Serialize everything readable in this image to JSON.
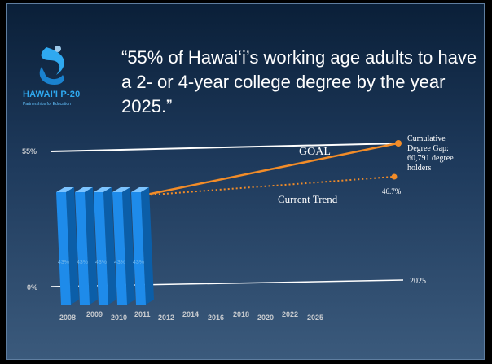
{
  "slide": {
    "quote": "“55% of Hawai‘i’s working age adults to have a 2- or 4-year college degree by the year 2025.”",
    "logo": {
      "title": "HAWAI'I P-20",
      "subtitle": "Partnerships for Education",
      "icon": "wave-icon"
    }
  },
  "chart_data": {
    "type": "bar",
    "axis_label_top": "55%",
    "axis_label_bottom": "0%",
    "goal_label": "GOAL",
    "trend_label": "Current Trend",
    "trend_end_label": "46.7%",
    "gap_annotation": [
      "Cumulative",
      "Degree Gap:",
      "60,791 degree",
      "holders"
    ],
    "end_year_label": "2025",
    "categories": [
      "2008",
      "2009",
      "2010",
      "2011",
      "2012",
      "2014",
      "2016",
      "2018",
      "2020",
      "2022",
      "2025"
    ],
    "bar_label_values": [
      "43%",
      "43%",
      "43%",
      "43%",
      "43%"
    ],
    "ylim": [
      0,
      55
    ],
    "colors": {
      "bars": "#1e8bea",
      "goal_line": "#f28c28",
      "trend_line": "#f28c28",
      "reference_line": "#ffffff"
    }
  }
}
